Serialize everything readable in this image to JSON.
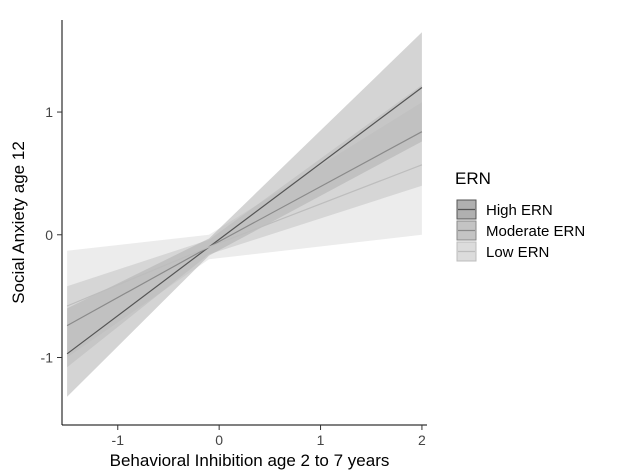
{
  "chart_data": {
    "type": "line",
    "xlabel": "Behavioral Inhibition age 2 to 7 years",
    "ylabel": "Social Anxiety age 12",
    "xlim": [
      -1.55,
      2.05
    ],
    "ylim": [
      -1.55,
      1.75
    ],
    "x_ticks": [
      -1,
      0,
      1,
      2
    ],
    "y_ticks": [
      -1,
      0,
      1
    ],
    "grid": false,
    "legend": {
      "title": "ERN",
      "position": "right"
    },
    "series": [
      {
        "name": "High ERN",
        "line_color": "#555555",
        "band_color": "#b0b0b0",
        "band_opacity": 0.55,
        "points": [
          {
            "x": -1.5,
            "y": -0.97,
            "lower": -1.32,
            "upper": -0.6
          },
          {
            "x": -0.1,
            "y": -0.1,
            "lower": -0.17,
            "upper": -0.03
          },
          {
            "x": 2.0,
            "y": 1.2,
            "lower": 0.76,
            "upper": 1.65
          }
        ]
      },
      {
        "name": "Moderate ERN",
        "line_color": "#8a8a8a",
        "band_color": "#c4c4c4",
        "band_opacity": 0.55,
        "points": [
          {
            "x": -1.5,
            "y": -0.74,
            "lower": -1.08,
            "upper": -0.42
          },
          {
            "x": -0.1,
            "y": -0.1,
            "lower": -0.16,
            "upper": -0.04
          },
          {
            "x": 2.0,
            "y": 0.84,
            "lower": 0.4,
            "upper": 1.22
          }
        ]
      },
      {
        "name": "Low ERN",
        "line_color": "#bdbdbd",
        "band_color": "#dcdcdc",
        "band_opacity": 0.55,
        "points": [
          {
            "x": -1.5,
            "y": -0.58,
            "lower": -1.0,
            "upper": -0.13
          },
          {
            "x": -0.1,
            "y": -0.1,
            "lower": -0.2,
            "upper": 0.0
          },
          {
            "x": 2.0,
            "y": 0.57,
            "lower": 0.0,
            "upper": 1.08
          }
        ]
      }
    ]
  }
}
